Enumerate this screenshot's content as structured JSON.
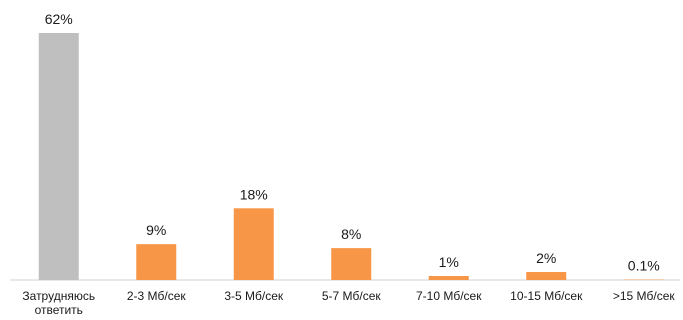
{
  "chart_data": {
    "type": "bar",
    "categories": [
      [
        "Затрудняюсь",
        "ответить"
      ],
      [
        "2-3 Мб/сек"
      ],
      [
        "3-5 Мб/сек"
      ],
      [
        "5-7 Мб/сек"
      ],
      [
        "7-10 Мб/сек"
      ],
      [
        "10-15 Мб/сек"
      ],
      [
        ">15 Мб/сек"
      ]
    ],
    "values": [
      62,
      9,
      18,
      8,
      1,
      2,
      0.1
    ],
    "value_labels": [
      "62%",
      "9%",
      "18%",
      "8%",
      "1%",
      "2%",
      "0.1%"
    ],
    "colors": [
      "#bfbfbf",
      "#f79646",
      "#f79646",
      "#f79646",
      "#f79646",
      "#f79646",
      "#f79646"
    ],
    "unit": "%",
    "ylim": [
      0,
      62
    ],
    "grid": false,
    "legend": "none",
    "title": "",
    "xlabel": "",
    "ylabel": ""
  }
}
